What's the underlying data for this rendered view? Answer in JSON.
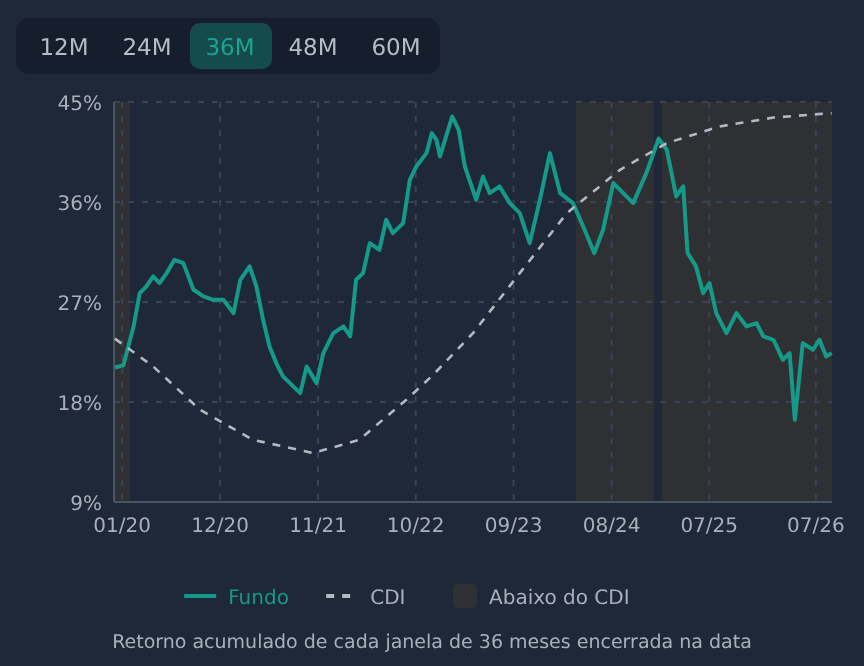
{
  "chart_data": {
    "type": "line",
    "xlim": [
      "2019-12-04",
      "2026-08-25"
    ],
    "ylim": [
      9,
      45
    ],
    "xticks": [
      {
        "value": "2020-01",
        "label": "01/20"
      },
      {
        "value": "2020-12",
        "label": "12/20"
      },
      {
        "value": "2021-11",
        "label": "11/21"
      },
      {
        "value": "2022-10",
        "label": "10/22"
      },
      {
        "value": "2023-09",
        "label": "09/23"
      },
      {
        "value": "2024-08",
        "label": "08/24"
      },
      {
        "value": "2025-07",
        "label": "07/25"
      },
      {
        "value": "2026-07",
        "label": "07/26"
      }
    ],
    "yticks": [
      {
        "value": 9,
        "label": "9%"
      },
      {
        "value": 18,
        "label": "18%"
      },
      {
        "value": 27,
        "label": "27%"
      },
      {
        "value": 36,
        "label": "36%"
      },
      {
        "value": 45,
        "label": "45%"
      }
    ],
    "grid": true,
    "legend": "bottom",
    "series": [
      {
        "name": "Fundo",
        "color": "#159a89",
        "line_style": "solid",
        "x": [
          "2019-12-07",
          "2020-01-05",
          "2020-02-09",
          "2020-03-01",
          "2020-03-24",
          "2020-04-16",
          "2020-05-08",
          "2020-06-01",
          "2020-06-28",
          "2020-07-28",
          "2020-09-01",
          "2020-10-05",
          "2020-11-08",
          "2020-12-12",
          "2021-01-16",
          "2021-02-08",
          "2021-03-12",
          "2021-04-04",
          "2021-04-27",
          "2021-05-19",
          "2021-06-11",
          "2021-07-04",
          "2021-08-08",
          "2021-09-01",
          "2021-09-23",
          "2021-10-27",
          "2021-11-19",
          "2021-12-23",
          "2022-01-27",
          "2022-02-19",
          "2022-03-11",
          "2022-04-04",
          "2022-04-27",
          "2022-05-30",
          "2022-06-22",
          "2022-07-15",
          "2022-08-19",
          "2022-09-11",
          "2022-10-03",
          "2022-11-07",
          "2022-11-25",
          "2022-12-11",
          "2022-12-23",
          "2023-02-03",
          "2023-02-25",
          "2023-03-18",
          "2023-04-26",
          "2023-05-19",
          "2023-06-11",
          "2023-07-15",
          "2023-08-19",
          "2023-09-22",
          "2023-10-26",
          "2023-11-30",
          "2024-01-03",
          "2024-02-07",
          "2024-03-22",
          "2024-04-26",
          "2024-06-03",
          "2024-07-03",
          "2024-08-07",
          "2024-09-10",
          "2024-10-14",
          "2024-11-28",
          "2025-01-09",
          "2025-02-06",
          "2025-03-10",
          "2025-04-03",
          "2025-04-18",
          "2025-05-17",
          "2025-06-10",
          "2025-07-02",
          "2025-07-25",
          "2025-08-29",
          "2025-10-02",
          "2025-11-06",
          "2025-12-10",
          "2026-01-02",
          "2026-02-06",
          "2026-03-10",
          "2026-04-02",
          "2026-04-20",
          "2026-05-17",
          "2026-06-21",
          "2026-07-13",
          "2026-08-05",
          "2026-08-24"
        ],
        "values": [
          21.1,
          21.3,
          24.8,
          27.8,
          28.4,
          29.3,
          28.7,
          29.6,
          30.8,
          30.5,
          28.1,
          27.5,
          27.2,
          27.2,
          26,
          29,
          30.2,
          28.4,
          25.4,
          23,
          21.5,
          20.3,
          19.4,
          18.8,
          21.2,
          19.7,
          22.4,
          24.2,
          24.8,
          23.9,
          29,
          29.6,
          32.3,
          31.7,
          34.4,
          33.2,
          34.1,
          38,
          39.2,
          40.4,
          42.2,
          41.6,
          40.1,
          43.7,
          42.5,
          39.2,
          36.2,
          38.3,
          36.8,
          37.4,
          35.9,
          35,
          32.3,
          36.2,
          40.4,
          36.8,
          35.9,
          33.8,
          31.4,
          33.5,
          37.7,
          36.8,
          35.9,
          38.6,
          41.7,
          40.7,
          36.5,
          37.4,
          31.4,
          30.2,
          27.8,
          28.7,
          26,
          24.2,
          26,
          24.8,
          25.1,
          23.9,
          23.6,
          21.8,
          22.4,
          16.4,
          23.3,
          22.7,
          23.6,
          22.1,
          22.4
        ]
      },
      {
        "name": "CDI",
        "color": "#b4b8c0",
        "line_style": "dashed",
        "x": [
          "2019-12-07",
          "2020-04-16",
          "2020-09-23",
          "2021-03-23",
          "2021-10-15",
          "2022-03-22",
          "2022-08-30",
          "2022-12-02",
          "2023-04-15",
          "2023-09-22",
          "2024-03-01",
          "2024-08-30",
          "2025-02-06",
          "2025-08-06",
          "2026-02-06",
          "2026-08-24"
        ],
        "values": [
          23.7,
          21.2,
          17.3,
          14.6,
          13.4,
          14.6,
          18.2,
          20.5,
          24.2,
          29.6,
          35,
          38.9,
          41.3,
          42.8,
          43.6,
          44
        ]
      }
    ],
    "bands": [
      {
        "axis": "x",
        "from": "2019-12-04",
        "to": "2020-01-28",
        "label": "Abaixo do CDI",
        "color": "#2f3034"
      },
      {
        "axis": "x",
        "from": "2024-04-01",
        "to": "2024-12-24",
        "color": "#2f3034"
      },
      {
        "axis": "x",
        "from": "2025-01-20",
        "to": "2026-08-25",
        "color": "#2f3034"
      }
    ],
    "annotations": [
      "12M",
      "24M",
      "36M",
      "48M",
      "60M",
      "Retorno acumulado de cada janela de 36 meses encerrada na data"
    ]
  }
}
